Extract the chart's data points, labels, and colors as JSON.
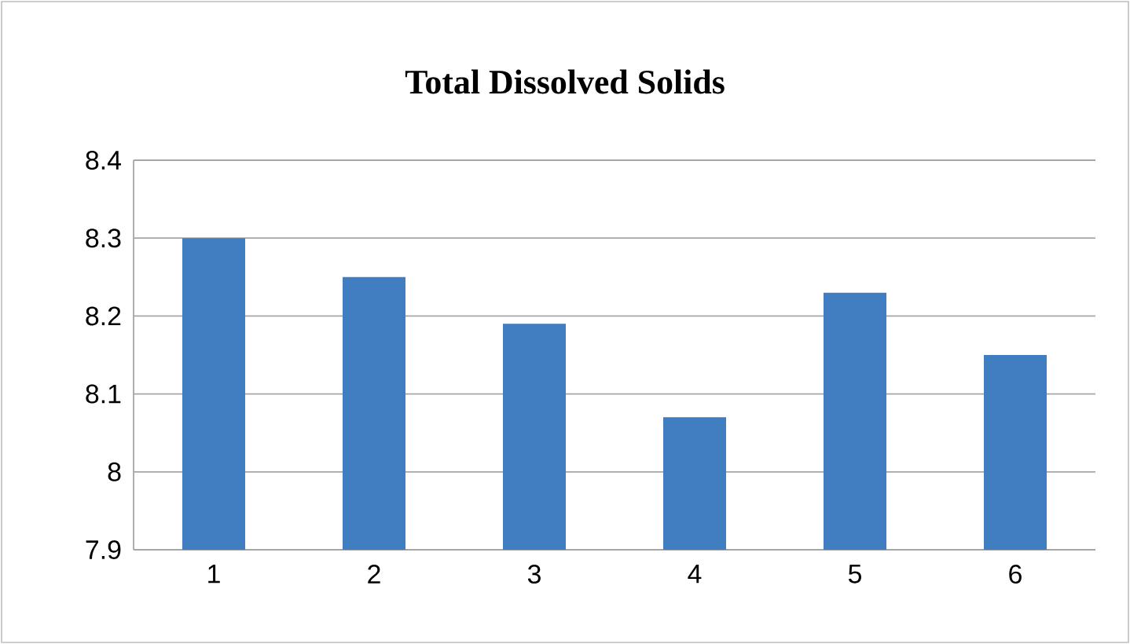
{
  "chart_data": {
    "type": "bar",
    "title": "Total Dissolved Solids",
    "categories": [
      "1",
      "2",
      "3",
      "4",
      "5",
      "6"
    ],
    "values": [
      8.3,
      8.25,
      8.19,
      8.07,
      8.23,
      8.15
    ],
    "color": "#417dc1",
    "ylim": [
      7.9,
      8.4
    ],
    "yticks": [
      7.9,
      8,
      8.1,
      8.2,
      8.3,
      8.4
    ],
    "grid": "y"
  }
}
